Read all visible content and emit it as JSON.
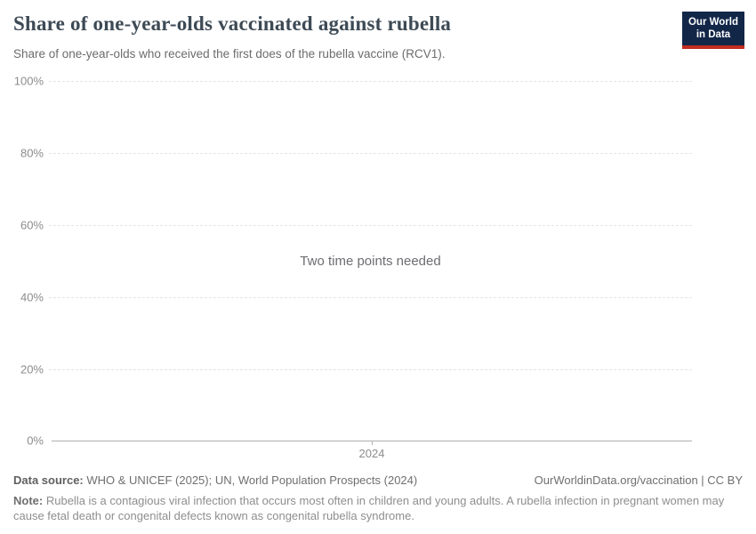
{
  "header": {
    "title": "Share of one-year-olds vaccinated against rubella",
    "subtitle": "Share of one-year-olds who received the first does of the rubella vaccine (RCV1).",
    "logo": {
      "line1": "Our World",
      "line2": "in Data"
    }
  },
  "chart_data": {
    "type": "line",
    "title": "Share of one-year-olds vaccinated against rubella",
    "subtitle": "Share of one-year-olds who received the first does of the rubella vaccine (RCV1).",
    "series": [],
    "empty_state_message": "Two time points needed",
    "x_axis": {
      "tick_labels": [
        "2024"
      ]
    },
    "y_axis": {
      "tick_labels": [
        "100%",
        "80%",
        "60%",
        "40%",
        "20%",
        "0%"
      ],
      "range": [
        0,
        100
      ],
      "unit": "%",
      "grid": "horizontal dashed, solid baseline at 0%"
    },
    "legend": "none"
  },
  "footer": {
    "data_source_label": "Data source:",
    "data_source_text": "WHO & UNICEF (2025); UN, World Population Prospects (2024)",
    "citation_link": "OurWorldinData.org/vaccination | CC BY",
    "note_label": "Note:",
    "note_line1": "Rubella is a contagious viral infection that occurs most often in children and young adults. A rubella infection in pregnant women may",
    "note_line2": "cause fetal death or congenital defects known as congenital rubella syndrome."
  },
  "colors": {
    "logo_background": "#122648",
    "logo_accent_bar": "#c22d1f",
    "title_text": "#3d4a55",
    "grid_dashed": "#e4e4e4",
    "axis_line": "#b0b0b0",
    "muted_text": "#8c8c8c"
  }
}
